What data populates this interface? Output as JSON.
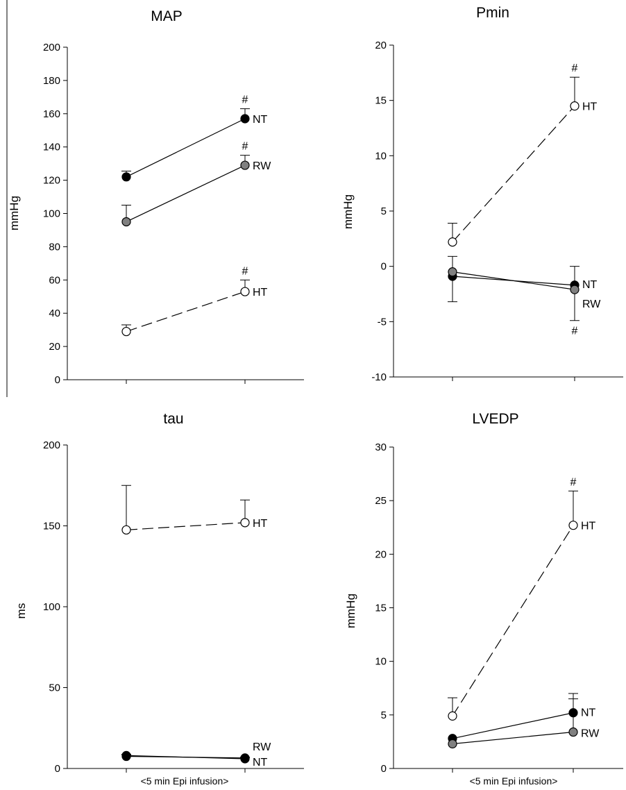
{
  "chart_data": [
    {
      "type": "line",
      "title": "MAP",
      "xlabel": "",
      "ylabel": "mmHg",
      "ylim": [
        0,
        200
      ],
      "yticks": [
        0,
        20,
        40,
        60,
        80,
        100,
        120,
        140,
        160,
        180,
        200
      ],
      "categories": [
        "",
        ""
      ],
      "grid": false,
      "series": [
        {
          "name": "NT",
          "values": [
            122,
            157
          ],
          "err_up": [
            3.5,
            6
          ],
          "err_down": [
            0,
            0
          ],
          "fill": "#000000",
          "dash": false,
          "sig": [
            "",
            "#"
          ]
        },
        {
          "name": "RW",
          "values": [
            95,
            129
          ],
          "err_up": [
            10,
            6
          ],
          "err_down": [
            0,
            0
          ],
          "fill": "#808080",
          "dash": false,
          "sig": [
            "",
            "#"
          ]
        },
        {
          "name": "HT",
          "values": [
            29,
            53
          ],
          "err_up": [
            4,
            7
          ],
          "err_down": [
            0,
            0
          ],
          "fill": "#ffffff",
          "dash": true,
          "sig": [
            "",
            "#"
          ]
        }
      ]
    },
    {
      "type": "line",
      "title": "Pmin",
      "xlabel": "",
      "ylabel": "mmHg",
      "ylim": [
        -10,
        20
      ],
      "yticks": [
        -10,
        -5,
        0,
        5,
        10,
        15,
        20
      ],
      "categories": [
        "",
        ""
      ],
      "grid": false,
      "series": [
        {
          "name": "HT",
          "values": [
            2.2,
            14.5
          ],
          "err_up": [
            1.7,
            2.6
          ],
          "err_down": [
            0,
            0
          ],
          "fill": "#ffffff",
          "dash": true,
          "sig": [
            "",
            "#"
          ]
        },
        {
          "name": "NT",
          "values": [
            -0.9,
            -1.7
          ],
          "err_up": [
            1.8,
            1.7
          ],
          "err_down": [
            0,
            0
          ],
          "fill": "#000000",
          "dash": false,
          "sig": [
            "",
            ""
          ]
        },
        {
          "name": "RW",
          "values": [
            -0.5,
            -2.1
          ],
          "err_up": [
            0,
            0
          ],
          "err_down": [
            2.7,
            2.8
          ],
          "fill": "#808080",
          "dash": false,
          "sig": [
            "",
            "#"
          ]
        }
      ]
    },
    {
      "type": "line",
      "title": "tau",
      "xlabel": "<5 min Epi infusion>",
      "ylabel": "ms",
      "ylim": [
        0,
        200
      ],
      "yticks": [
        0,
        50,
        100,
        150,
        200
      ],
      "categories": [
        "",
        ""
      ],
      "grid": false,
      "series": [
        {
          "name": "HT",
          "values": [
            147.5,
            152
          ],
          "err_up": [
            27.5,
            14
          ],
          "err_down": [
            0,
            0
          ],
          "fill": "#ffffff",
          "dash": true,
          "sig": [
            "",
            ""
          ]
        },
        {
          "name": "RW",
          "values": [
            7.5,
            6.5
          ],
          "err_up": [
            1,
            0.5
          ],
          "err_down": [
            0,
            0
          ],
          "fill": "#808080",
          "dash": false,
          "sig": [
            "",
            ""
          ]
        },
        {
          "name": "NT",
          "values": [
            8,
            6
          ],
          "err_up": [
            0.8,
            0.5
          ],
          "err_down": [
            0,
            0
          ],
          "fill": "#000000",
          "dash": false,
          "sig": [
            "",
            ""
          ]
        }
      ]
    },
    {
      "type": "line",
      "title": "LVEDP",
      "xlabel": "<5 min Epi infusion>",
      "ylabel": "mmHg",
      "ylim": [
        0,
        30
      ],
      "yticks": [
        0,
        5,
        10,
        15,
        20,
        25,
        30
      ],
      "categories": [
        "",
        ""
      ],
      "grid": false,
      "series": [
        {
          "name": "HT",
          "values": [
            4.9,
            22.7
          ],
          "err_up": [
            1.7,
            3.2
          ],
          "err_down": [
            0,
            0
          ],
          "fill": "#ffffff",
          "dash": true,
          "sig": [
            "",
            "#"
          ]
        },
        {
          "name": "NT",
          "values": [
            2.8,
            5.2
          ],
          "err_up": [
            0,
            1.8
          ],
          "err_down": [
            0,
            0
          ],
          "fill": "#000000",
          "dash": false,
          "sig": [
            "",
            ""
          ]
        },
        {
          "name": "RW",
          "values": [
            2.3,
            3.4
          ],
          "err_up": [
            0,
            3.1
          ],
          "err_down": [
            0,
            0
          ],
          "fill": "#808080",
          "dash": false,
          "sig": [
            "",
            ""
          ]
        }
      ]
    }
  ]
}
